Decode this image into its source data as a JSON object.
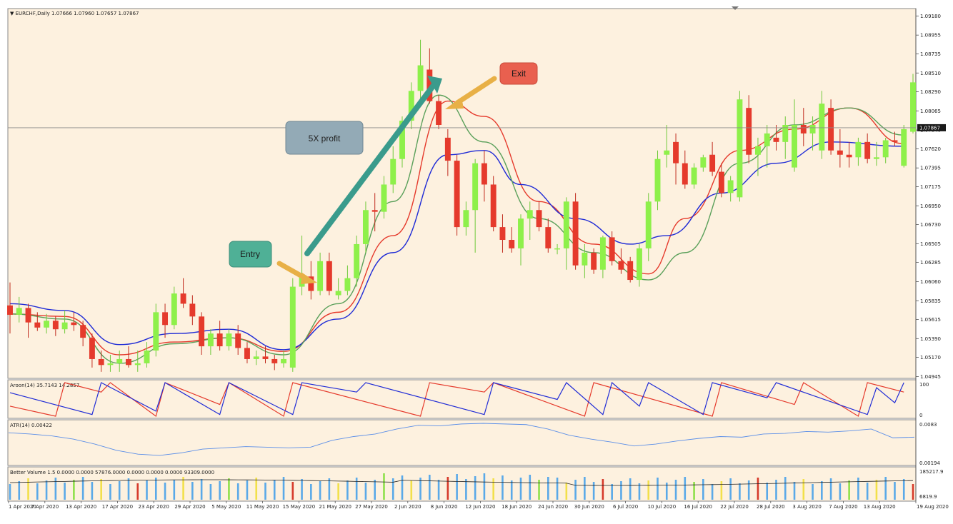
{
  "header": {
    "symbol_line": "▼ EURCHF,Daily  1.07666 1.07960 1.07657 1.07867"
  },
  "annotations": {
    "entry_label": "Entry",
    "exit_label": "Exit",
    "profit_label": "5X profit",
    "entry_color": "#4fb096",
    "exit_color": "#e9604f",
    "profit_color": "#93aab6",
    "long_arrow_color": "#3a9b8c",
    "short_arrow_color": "#e8b046"
  },
  "price_axis": {
    "ticks": [
      "1.09180",
      "1.08955",
      "1.08735",
      "1.08510",
      "1.08290",
      "1.08065",
      "1.07840",
      "1.07620",
      "1.07395",
      "1.07175",
      "1.06950",
      "1.06730",
      "1.06505",
      "1.06285",
      "1.06060",
      "1.05835",
      "1.05615",
      "1.05390",
      "1.05170",
      "1.04945"
    ],
    "current_price": "1.07867"
  },
  "aroon": {
    "label": "Aroon(14) 35.7143 14.2857",
    "top_tick": "100",
    "bottom_tick": "0",
    "up_color": "#e5392b",
    "down_color": "#1f2bd6"
  },
  "atr": {
    "label": "ATR(14) 0.00422",
    "top_tick": "0.0083",
    "bottom_tick": "0.00194",
    "color": "#5a8ee8"
  },
  "volume": {
    "label": "Better Volume 1.5 0.0000 0.0000 57876.0000 0.0000 0.0000 0.0000 93309.0000",
    "top_tick": "185217.9",
    "bottom_tick": "6819.9"
  },
  "date_axis": [
    "1 Apr 2020",
    "7 Apr 2020",
    "13 Apr 2020",
    "17 Apr 2020",
    "23 Apr 2020",
    "29 Apr 2020",
    "5 May 2020",
    "11 May 2020",
    "15 May 2020",
    "21 May 2020",
    "27 May 2020",
    "2 Jun 2020",
    "8 Jun 2020",
    "12 Jun 2020",
    "18 Jun 2020",
    "24 Jun 2020",
    "30 Jun 2020",
    "6 Jul 2020",
    "10 Jul 2020",
    "16 Jul 2020",
    "22 Jul 2020",
    "28 Jul 2020",
    "3 Aug 2020",
    "7 Aug 2020",
    "13 Aug 2020",
    "19 Aug 2020"
  ],
  "chart_data": {
    "type": "candlestick",
    "symbol": "EURCHF",
    "timeframe": "Daily",
    "ylim": [
      1.0494,
      1.0925
    ],
    "bull_color": "#8ef04a",
    "bear_color": "#e53a2c",
    "candles": [
      [
        1.0578,
        1.0605,
        1.0545,
        1.0567
      ],
      [
        1.0567,
        1.0588,
        1.0558,
        1.0575
      ],
      [
        1.0575,
        1.058,
        1.054,
        1.0558
      ],
      [
        1.0558,
        1.057,
        1.0548,
        1.0552
      ],
      [
        1.0552,
        1.0568,
        1.0545,
        1.056
      ],
      [
        1.056,
        1.0565,
        1.0542,
        1.055
      ],
      [
        1.055,
        1.0572,
        1.0545,
        1.0558
      ],
      [
        1.0558,
        1.057,
        1.0548,
        1.0555
      ],
      [
        1.0555,
        1.056,
        1.053,
        1.054
      ],
      [
        1.054,
        1.0545,
        1.0505,
        1.0515
      ],
      [
        1.0515,
        1.0525,
        1.05,
        1.0508
      ],
      [
        1.0508,
        1.052,
        1.05,
        1.051
      ],
      [
        1.051,
        1.0525,
        1.05,
        1.0515
      ],
      [
        1.0515,
        1.053,
        1.0505,
        1.0508
      ],
      [
        1.0508,
        1.0525,
        1.05,
        1.051
      ],
      [
        1.051,
        1.0535,
        1.0505,
        1.0525
      ],
      [
        1.0525,
        1.058,
        1.0518,
        1.057
      ],
      [
        1.057,
        1.058,
        1.054,
        1.0555
      ],
      [
        1.0555,
        1.06,
        1.055,
        1.0592
      ],
      [
        1.0592,
        1.061,
        1.0575,
        1.058
      ],
      [
        1.058,
        1.059,
        1.0555,
        1.0565
      ],
      [
        1.0565,
        1.057,
        1.052,
        1.053
      ],
      [
        1.053,
        1.055,
        1.052,
        1.0545
      ],
      [
        1.0545,
        1.056,
        1.0525,
        1.053
      ],
      [
        1.053,
        1.055,
        1.0525,
        1.0545
      ],
      [
        1.0545,
        1.0555,
        1.052,
        1.0528
      ],
      [
        1.0528,
        1.0535,
        1.051,
        1.0515
      ],
      [
        1.0515,
        1.0525,
        1.0508,
        1.0518
      ],
      [
        1.0518,
        1.053,
        1.051,
        1.0515
      ],
      [
        1.0515,
        1.052,
        1.0502,
        1.051
      ],
      [
        1.051,
        1.0525,
        1.0505,
        1.0515
      ],
      [
        1.0505,
        1.061,
        1.05,
        1.06
      ],
      [
        1.06,
        1.066,
        1.059,
        1.0612
      ],
      [
        1.0612,
        1.063,
        1.0585,
        1.0595
      ],
      [
        1.0595,
        1.064,
        1.059,
        1.063
      ],
      [
        1.063,
        1.064,
        1.059,
        1.0595
      ],
      [
        1.059,
        1.061,
        1.0585,
        1.0595
      ],
      [
        1.0595,
        1.0625,
        1.059,
        1.061
      ],
      [
        1.061,
        1.066,
        1.06,
        1.065
      ],
      [
        1.065,
        1.07,
        1.064,
        1.069
      ],
      [
        1.069,
        1.071,
        1.0665,
        1.0688
      ],
      [
        1.0688,
        1.073,
        1.068,
        1.072
      ],
      [
        1.072,
        1.0765,
        1.071,
        1.075
      ],
      [
        1.075,
        1.08,
        1.074,
        1.0795
      ],
      [
        1.0795,
        1.084,
        1.0785,
        1.083
      ],
      [
        1.083,
        1.089,
        1.082,
        1.086
      ],
      [
        1.0855,
        1.088,
        1.0815,
        1.0818
      ],
      [
        1.0818,
        1.0825,
        1.0785,
        1.079
      ],
      [
        1.0775,
        1.0785,
        1.073,
        1.0748
      ],
      [
        1.0748,
        1.0755,
        1.066,
        1.067
      ],
      [
        1.067,
        1.07,
        1.066,
        1.069
      ],
      [
        1.069,
        1.075,
        1.064,
        1.0745
      ],
      [
        1.0745,
        1.076,
        1.07,
        1.072
      ],
      [
        1.072,
        1.073,
        1.0665,
        1.067
      ],
      [
        1.067,
        1.0685,
        1.064,
        1.0655
      ],
      [
        1.0655,
        1.067,
        1.064,
        1.0645
      ],
      [
        1.0645,
        1.0685,
        1.0625,
        1.068
      ],
      [
        1.068,
        1.07,
        1.0655,
        1.069
      ],
      [
        1.069,
        1.07,
        1.0665,
        1.067
      ],
      [
        1.067,
        1.068,
        1.064,
        1.0645
      ],
      [
        1.0645,
        1.065,
        1.0638,
        1.0645
      ],
      [
        1.0645,
        1.0705,
        1.062,
        1.07
      ],
      [
        1.07,
        1.071,
        1.062,
        1.0625
      ],
      [
        1.0625,
        1.065,
        1.061,
        1.064
      ],
      [
        1.064,
        1.0645,
        1.0615,
        1.062
      ],
      [
        1.062,
        1.066,
        1.061,
        1.0658
      ],
      [
        1.0658,
        1.0665,
        1.0625,
        1.063
      ],
      [
        1.063,
        1.0645,
        1.0615,
        1.062
      ],
      [
        1.063,
        1.0635,
        1.0605,
        1.0608
      ],
      [
        1.0608,
        1.065,
        1.06,
        1.0645
      ],
      [
        1.0645,
        1.071,
        1.063,
        1.07
      ],
      [
        1.07,
        1.076,
        1.069,
        1.075
      ],
      [
        1.0755,
        1.079,
        1.074,
        1.076
      ],
      [
        1.077,
        1.078,
        1.072,
        1.0745
      ],
      [
        1.0745,
        1.076,
        1.0715,
        1.072
      ],
      [
        1.072,
        1.0745,
        1.0715,
        1.074
      ],
      [
        1.074,
        1.0755,
        1.0735,
        1.0752
      ],
      [
        1.0755,
        1.077,
        1.073,
        1.0735
      ],
      [
        1.0735,
        1.0745,
        1.0705,
        1.071
      ],
      [
        1.071,
        1.073,
        1.07,
        1.0725
      ],
      [
        1.0705,
        1.083,
        1.07,
        1.082
      ],
      [
        1.081,
        1.0825,
        1.0745,
        1.0755
      ],
      [
        1.0755,
        1.0775,
        1.073,
        1.0765
      ],
      [
        1.0765,
        1.079,
        1.074,
        1.078
      ],
      [
        1.0775,
        1.079,
        1.076,
        1.077
      ],
      [
        1.077,
        1.08,
        1.075,
        1.079
      ],
      [
        1.074,
        1.082,
        1.0735,
        1.079
      ],
      [
        1.079,
        1.081,
        1.0765,
        1.078
      ],
      [
        1.078,
        1.08,
        1.076,
        1.079
      ],
      [
        1.076,
        1.083,
        1.075,
        1.0815
      ],
      [
        1.081,
        1.082,
        1.0755,
        1.076
      ],
      [
        1.076,
        1.0785,
        1.074,
        1.0755
      ],
      [
        1.0755,
        1.077,
        1.074,
        1.0752
      ],
      [
        1.0752,
        1.0775,
        1.0742,
        1.077
      ],
      [
        1.077,
        1.078,
        1.0745,
        1.075
      ],
      [
        1.075,
        1.077,
        1.0742,
        1.0752
      ],
      [
        1.0752,
        1.0775,
        1.0745,
        1.0772
      ],
      [
        1.0772,
        1.0782,
        1.0765,
        1.077
      ],
      [
        1.0742,
        1.079,
        1.074,
        1.0785
      ],
      [
        1.0782,
        1.085,
        1.078,
        1.084
      ]
    ],
    "moving_averages": [
      {
        "color": "#e5392b",
        "points": [
          [
            0,
            1.0568
          ],
          [
            6,
            1.0565
          ],
          [
            12,
            1.052
          ],
          [
            18,
            1.0535
          ],
          [
            24,
            1.054
          ],
          [
            30,
            1.0524
          ],
          [
            36,
            1.057
          ],
          [
            42,
            1.066
          ],
          [
            48,
            1.0818
          ],
          [
            52,
            1.08
          ],
          [
            58,
            1.07
          ],
          [
            64,
            1.065
          ],
          [
            70,
            1.0615
          ],
          [
            74,
            1.068
          ],
          [
            80,
            1.076
          ],
          [
            86,
            1.0785
          ],
          [
            92,
            1.081
          ],
          [
            98,
            1.0768
          ]
        ]
      },
      {
        "color": "#1f2bd6",
        "points": [
          [
            0,
            1.058
          ],
          [
            6,
            1.0572
          ],
          [
            12,
            1.0532
          ],
          [
            18,
            1.0545
          ],
          [
            24,
            1.055
          ],
          [
            30,
            1.0526
          ],
          [
            36,
            1.0562
          ],
          [
            42,
            1.064
          ],
          [
            48,
            1.0755
          ],
          [
            52,
            1.076
          ],
          [
            56,
            1.072
          ],
          [
            62,
            1.068
          ],
          [
            68,
            1.065
          ],
          [
            72,
            1.066
          ],
          [
            78,
            1.071
          ],
          [
            84,
            1.0745
          ],
          [
            90,
            1.077
          ],
          [
            98,
            1.0765
          ]
        ]
      },
      {
        "color": "#5aa05a",
        "points": [
          [
            0,
            1.0568
          ],
          [
            6,
            1.0562
          ],
          [
            12,
            1.051
          ],
          [
            18,
            1.0533
          ],
          [
            24,
            1.054
          ],
          [
            30,
            1.052
          ],
          [
            36,
            1.058
          ],
          [
            42,
            1.07
          ],
          [
            47,
            1.0825
          ],
          [
            52,
            1.077
          ],
          [
            58,
            1.068
          ],
          [
            64,
            1.064
          ],
          [
            70,
            1.0608
          ],
          [
            74,
            1.064
          ],
          [
            80,
            1.0745
          ],
          [
            86,
            1.079
          ],
          [
            92,
            1.081
          ],
          [
            98,
            1.0778
          ]
        ]
      }
    ],
    "aroon_up": [
      [
        0,
        0.3
      ],
      [
        5,
        0.0
      ],
      [
        6,
        1.0
      ],
      [
        10,
        0.72
      ],
      [
        11,
        1.0
      ],
      [
        16,
        0.0
      ],
      [
        17,
        1.0
      ],
      [
        23,
        0.35
      ],
      [
        24,
        1.0
      ],
      [
        30,
        0.0
      ],
      [
        31,
        1.0
      ],
      [
        45,
        0.0
      ],
      [
        46,
        1.0
      ],
      [
        52,
        0.72
      ],
      [
        53,
        1.0
      ],
      [
        63,
        0.0
      ],
      [
        64,
        1.0
      ],
      [
        77,
        0.0
      ],
      [
        78,
        1.0
      ],
      [
        86,
        0.35
      ],
      [
        87,
        1.0
      ],
      [
        93,
        0.0
      ],
      [
        94,
        1.0
      ],
      [
        98,
        0.72
      ]
    ],
    "aroon_down": [
      [
        0,
        0.7
      ],
      [
        9,
        0.05
      ],
      [
        10,
        1.0
      ],
      [
        16,
        0.15
      ],
      [
        17,
        1.0
      ],
      [
        23,
        0.05
      ],
      [
        24,
        1.0
      ],
      [
        31,
        0.05
      ],
      [
        32,
        1.0
      ],
      [
        38,
        0.72
      ],
      [
        39,
        1.0
      ],
      [
        52,
        0.05
      ],
      [
        53,
        1.0
      ],
      [
        60,
        0.5
      ],
      [
        61,
        1.0
      ],
      [
        65,
        0.05
      ],
      [
        66,
        1.0
      ],
      [
        69,
        0.3
      ],
      [
        70,
        1.0
      ],
      [
        76,
        0.05
      ],
      [
        77,
        1.0
      ],
      [
        83,
        0.55
      ],
      [
        84,
        1.0
      ],
      [
        94,
        0.05
      ],
      [
        95,
        0.85
      ],
      [
        97,
        0.4
      ],
      [
        98,
        1.0
      ]
    ],
    "atr_values": [
      0.0068,
      0.0066,
      0.0063,
      0.0058,
      0.005,
      0.004,
      0.0034,
      0.0032,
      0.0036,
      0.0042,
      0.0044,
      0.0046,
      0.0045,
      0.0044,
      0.0045,
      0.0056,
      0.0062,
      0.0066,
      0.0074,
      0.008,
      0.0079,
      0.0082,
      0.0083,
      0.0082,
      0.0081,
      0.0074,
      0.0064,
      0.0058,
      0.0053,
      0.0047,
      0.005,
      0.0055,
      0.0059,
      0.0062,
      0.0061,
      0.0066,
      0.0067,
      0.007,
      0.0069,
      0.0071,
      0.0074,
      0.006,
      0.0061
    ]
  }
}
